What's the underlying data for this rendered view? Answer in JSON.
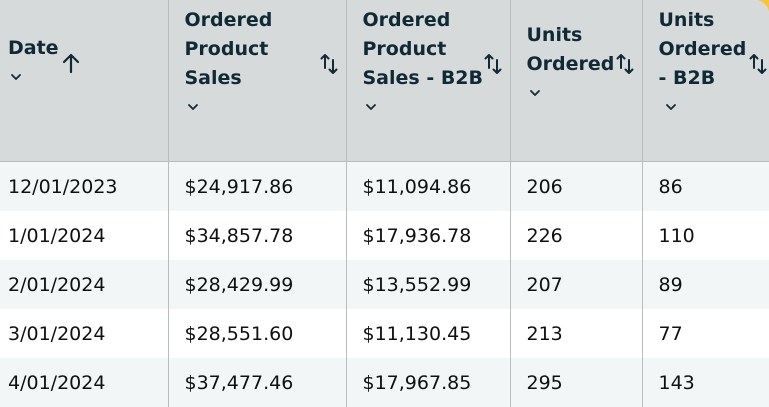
{
  "columns": [
    {
      "id": "date",
      "label_lines": [
        "Date"
      ],
      "sort": "ascending"
    },
    {
      "id": "ordered-product-sales",
      "label_lines": [
        "Ordered",
        "Product",
        "Sales"
      ],
      "sort": "sortable"
    },
    {
      "id": "ordered-product-sales-b2b",
      "label_lines": [
        "Ordered",
        "Product",
        "Sales - B2B"
      ],
      "sort": "sortable"
    },
    {
      "id": "units-ordered",
      "label_lines": [
        "Units",
        "Ordered"
      ],
      "sort": "sortable"
    },
    {
      "id": "units-ordered-b2b",
      "label_lines": [
        "Units",
        "Ordered",
        "- B2B"
      ],
      "sort": "sortable"
    }
  ],
  "rows": [
    [
      "12/01/2023",
      "$24,917.86",
      "$11,094.86",
      "206",
      "86"
    ],
    [
      "1/01/2024",
      "$34,857.78",
      "$17,936.78",
      "226",
      "110"
    ],
    [
      "2/01/2024",
      "$28,429.99",
      "$13,552.99",
      "207",
      "89"
    ],
    [
      "3/01/2024",
      "$28,551.60",
      "$11,130.45",
      "213",
      "77"
    ],
    [
      "4/01/2024",
      "$37,477.46",
      "$17,967.85",
      "295",
      "143"
    ]
  ],
  "icons": {
    "sort_ascending": "arrow-up-icon",
    "sortable": "sort-up-down-icon",
    "dropdown": "chevron-down-icon"
  },
  "colors": {
    "header_bg": "#d6dadb",
    "header_text": "#0f2a36",
    "row_alt_bg": "#f2f6f7",
    "frame_accent": "#f8c23a"
  }
}
